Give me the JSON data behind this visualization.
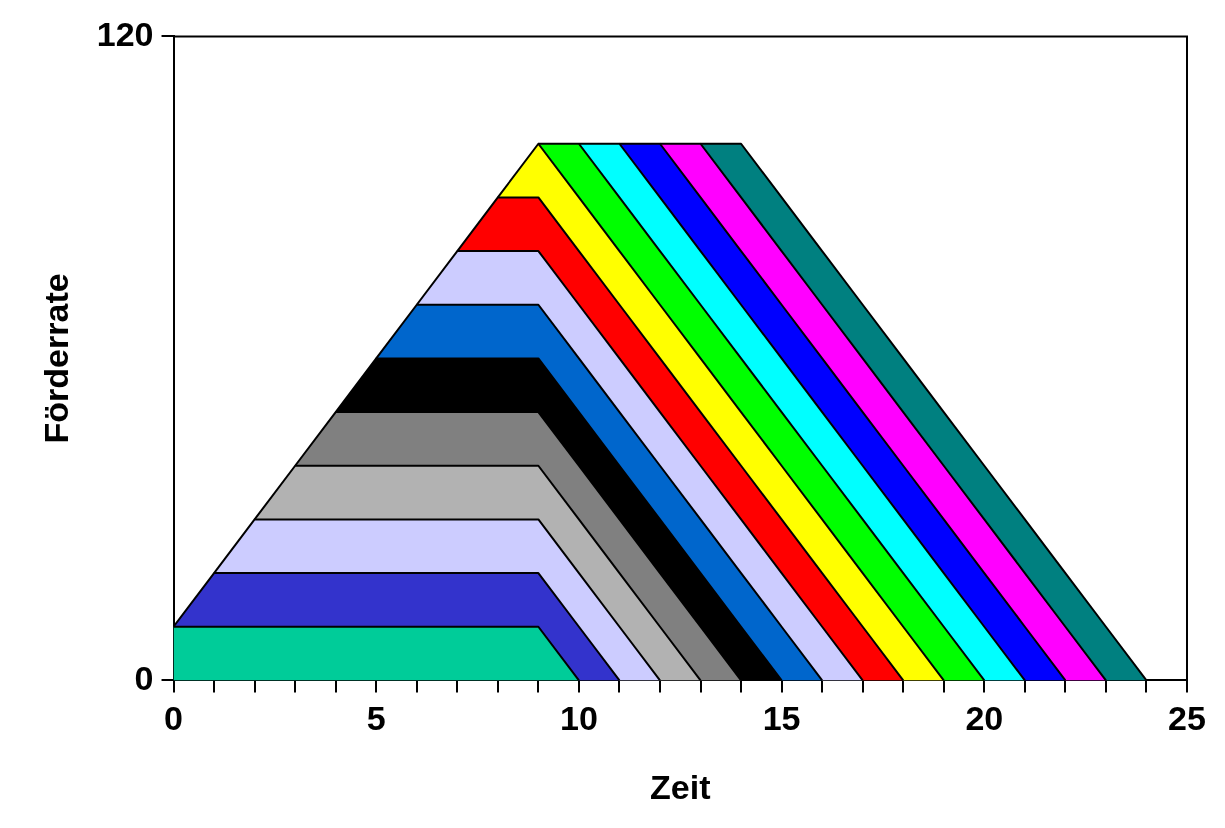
{
  "chart_data": {
    "type": "area",
    "stacked": true,
    "xlabel": "Zeit",
    "ylabel": "Förderrate",
    "x": [
      0,
      1,
      2,
      3,
      4,
      5,
      6,
      7,
      8,
      9,
      10,
      11,
      12,
      13,
      14,
      15,
      16,
      17,
      18,
      19,
      20,
      21,
      22,
      23,
      24
    ],
    "xlim": [
      0,
      25
    ],
    "ylim": [
      0,
      120
    ],
    "xticks": [
      0,
      {
        "value": 1,
        "label": null
      },
      {
        "value": 2,
        "label": null
      },
      {
        "value": 3,
        "label": null
      },
      {
        "value": 4,
        "label": null
      },
      5,
      {
        "value": 6,
        "label": null
      },
      {
        "value": 7,
        "label": null
      },
      {
        "value": 8,
        "label": null
      },
      {
        "value": 9,
        "label": null
      },
      10,
      {
        "value": 11,
        "label": null
      },
      {
        "value": 12,
        "label": null
      },
      {
        "value": 13,
        "label": null
      },
      {
        "value": 14,
        "label": null
      },
      15,
      {
        "value": 16,
        "label": null
      },
      {
        "value": 17,
        "label": null
      },
      {
        "value": 18,
        "label": null
      },
      {
        "value": 19,
        "label": null
      },
      20,
      {
        "value": 21,
        "label": null
      },
      {
        "value": 22,
        "label": null
      },
      {
        "value": 23,
        "label": null
      },
      {
        "value": 24,
        "label": null
      },
      25
    ],
    "yticks": [
      0,
      120
    ],
    "grid": false,
    "legend": false,
    "marker": "none",
    "series": [
      {
        "color": "#00cc99",
        "values": [
          10,
          10,
          10,
          10,
          10,
          10,
          10,
          10,
          10,
          10,
          0,
          null,
          null,
          null,
          null,
          null,
          null,
          null,
          null,
          null,
          null,
          null,
          null,
          null,
          null
        ]
      },
      {
        "color": "#3333cc",
        "values": [
          0,
          10,
          10,
          10,
          10,
          10,
          10,
          10,
          10,
          10,
          10,
          0,
          null,
          null,
          null,
          null,
          null,
          null,
          null,
          null,
          null,
          null,
          null,
          null,
          null
        ]
      },
      {
        "color": "#ccccff",
        "values": [
          null,
          0,
          10,
          10,
          10,
          10,
          10,
          10,
          10,
          10,
          10,
          10,
          0,
          null,
          null,
          null,
          null,
          null,
          null,
          null,
          null,
          null,
          null,
          null,
          null
        ]
      },
      {
        "color": "#b2b2b2",
        "values": [
          null,
          null,
          0,
          10,
          10,
          10,
          10,
          10,
          10,
          10,
          10,
          10,
          10,
          0,
          null,
          null,
          null,
          null,
          null,
          null,
          null,
          null,
          null,
          null,
          null
        ]
      },
      {
        "color": "#808080",
        "values": [
          null,
          null,
          null,
          0,
          10,
          10,
          10,
          10,
          10,
          10,
          10,
          10,
          10,
          10,
          0,
          null,
          null,
          null,
          null,
          null,
          null,
          null,
          null,
          null,
          null
        ]
      },
      {
        "color": "#000000",
        "values": [
          null,
          null,
          null,
          null,
          0,
          10,
          10,
          10,
          10,
          10,
          10,
          10,
          10,
          10,
          10,
          0,
          null,
          null,
          null,
          null,
          null,
          null,
          null,
          null,
          null
        ]
      },
      {
        "color": "#0066cc",
        "values": [
          null,
          null,
          null,
          null,
          null,
          0,
          10,
          10,
          10,
          10,
          10,
          10,
          10,
          10,
          10,
          10,
          0,
          null,
          null,
          null,
          null,
          null,
          null,
          null,
          null
        ]
      },
      {
        "color": "#ccccff",
        "values": [
          null,
          null,
          null,
          null,
          null,
          null,
          0,
          10,
          10,
          10,
          10,
          10,
          10,
          10,
          10,
          10,
          10,
          0,
          null,
          null,
          null,
          null,
          null,
          null,
          null
        ]
      },
      {
        "color": "#ff0000",
        "values": [
          null,
          null,
          null,
          null,
          null,
          null,
          null,
          0,
          10,
          10,
          10,
          10,
          10,
          10,
          10,
          10,
          10,
          10,
          0,
          null,
          null,
          null,
          null,
          null,
          null
        ]
      },
      {
        "color": "#ffff00",
        "values": [
          null,
          null,
          null,
          null,
          null,
          null,
          null,
          null,
          0,
          10,
          10,
          10,
          10,
          10,
          10,
          10,
          10,
          10,
          10,
          0,
          null,
          null,
          null,
          null,
          null
        ]
      },
      {
        "color": "#00ff00",
        "values": [
          null,
          null,
          null,
          null,
          null,
          null,
          null,
          null,
          null,
          0,
          10,
          10,
          10,
          10,
          10,
          10,
          10,
          10,
          10,
          10,
          0,
          null,
          null,
          null,
          null
        ]
      },
      {
        "color": "#00ffff",
        "values": [
          null,
          null,
          null,
          null,
          null,
          null,
          null,
          null,
          null,
          null,
          0,
          10,
          10,
          10,
          10,
          10,
          10,
          10,
          10,
          10,
          10,
          0,
          null,
          null,
          null
        ]
      },
      {
        "color": "#0000ff",
        "values": [
          null,
          null,
          null,
          null,
          null,
          null,
          null,
          null,
          null,
          null,
          null,
          0,
          10,
          10,
          10,
          10,
          10,
          10,
          10,
          10,
          10,
          10,
          0,
          null,
          null
        ]
      },
      {
        "color": "#ff00ff",
        "values": [
          null,
          null,
          null,
          null,
          null,
          null,
          null,
          null,
          null,
          null,
          null,
          null,
          0,
          10,
          10,
          10,
          10,
          10,
          10,
          10,
          10,
          10,
          10,
          0,
          null
        ]
      },
      {
        "color": "#008080",
        "values": [
          null,
          null,
          null,
          null,
          null,
          null,
          null,
          null,
          null,
          null,
          null,
          null,
          null,
          0,
          10,
          10,
          10,
          10,
          10,
          10,
          10,
          10,
          10,
          10,
          0
        ]
      }
    ]
  }
}
